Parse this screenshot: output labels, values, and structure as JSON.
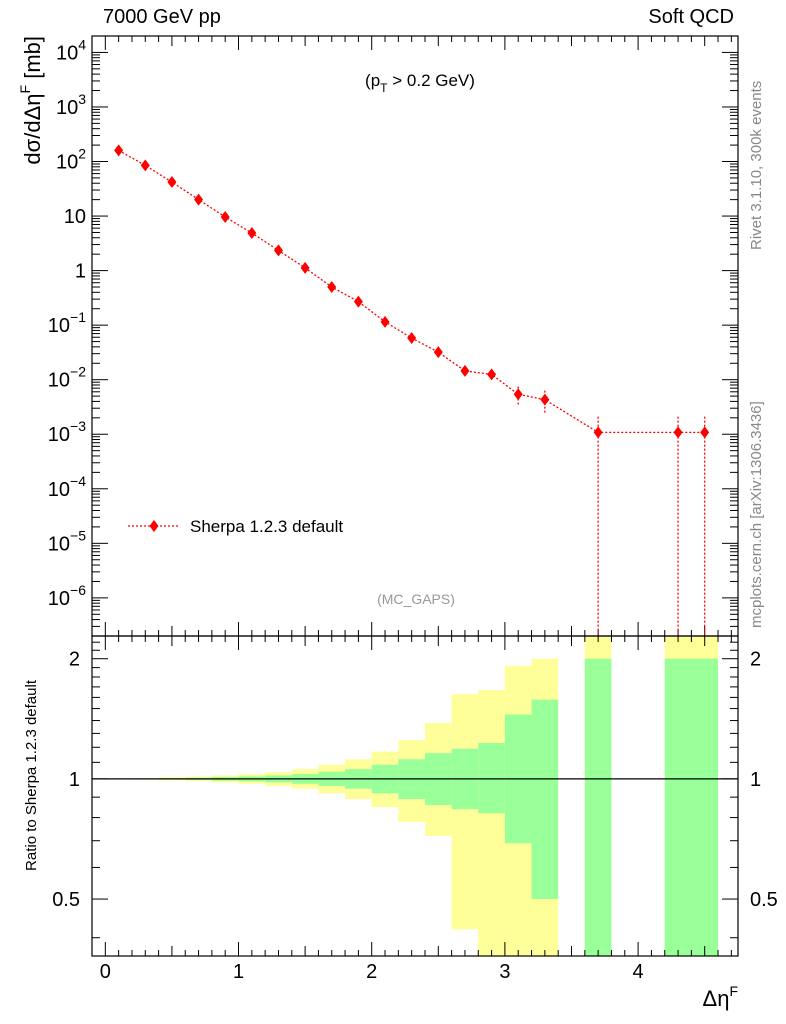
{
  "header": {
    "left": "7000 GeV pp",
    "right": "Soft QCD"
  },
  "side_labels": {
    "rivet": "Rivet 3.1.10,  300k events",
    "mcplots": "mcplots.cern.ch [arXiv:1306.3436]"
  },
  "chart_data": [
    {
      "type": "scatter",
      "panel": "main",
      "title": "",
      "annotation": {
        "text": "(p",
        "sub": "T",
        "rest": " > 0.2 GeV)"
      },
      "analysis_label": "(MC_GAPS)",
      "ylabel": "dσ/dΔη",
      "ylabel_sup": "F",
      "ylabel_unit": " [mb]",
      "yscale": "log",
      "xlim": [
        -0.1,
        4.75
      ],
      "ylim": [
        2e-07,
        20000
      ],
      "y_ticks": [
        {
          "v": 1e-06,
          "base": "10",
          "exp": "−6"
        },
        {
          "v": 1e-05,
          "base": "10",
          "exp": "−5"
        },
        {
          "v": 0.0001,
          "base": "10",
          "exp": "−4"
        },
        {
          "v": 0.001,
          "base": "10",
          "exp": "−3"
        },
        {
          "v": 0.01,
          "base": "10",
          "exp": "−2"
        },
        {
          "v": 0.1,
          "base": "10",
          "exp": "−1"
        },
        {
          "v": 1,
          "base": "1",
          "exp": ""
        },
        {
          "v": 10,
          "base": "10",
          "exp": ""
        },
        {
          "v": 100,
          "base": "10",
          "exp": "2"
        },
        {
          "v": 1000,
          "base": "10",
          "exp": "3"
        },
        {
          "v": 10000,
          "base": "10",
          "exp": "4"
        }
      ],
      "legend": {
        "position": "lower-left",
        "entry": "Sherpa 1.2.3 default"
      },
      "series": [
        {
          "name": "Sherpa 1.2.3 default",
          "color": "#ff0000",
          "points": [
            {
              "x": 0.1,
              "y": 160,
              "lo": 160,
              "hi": 160
            },
            {
              "x": 0.3,
              "y": 85,
              "lo": 85,
              "hi": 85
            },
            {
              "x": 0.5,
              "y": 42,
              "lo": 42,
              "hi": 42
            },
            {
              "x": 0.7,
              "y": 20,
              "lo": 20,
              "hi": 20
            },
            {
              "x": 0.9,
              "y": 9.6,
              "lo": 9.6,
              "hi": 9.6
            },
            {
              "x": 1.1,
              "y": 4.9,
              "lo": 4.9,
              "hi": 4.9
            },
            {
              "x": 1.3,
              "y": 2.35,
              "lo": 2.35,
              "hi": 2.35
            },
            {
              "x": 1.5,
              "y": 1.12,
              "lo": 1.12,
              "hi": 1.12
            },
            {
              "x": 1.7,
              "y": 0.5,
              "lo": 0.5,
              "hi": 0.5
            },
            {
              "x": 1.9,
              "y": 0.27,
              "lo": 0.27,
              "hi": 0.27
            },
            {
              "x": 2.1,
              "y": 0.115,
              "lo": 0.11,
              "hi": 0.12
            },
            {
              "x": 2.3,
              "y": 0.058,
              "lo": 0.055,
              "hi": 0.061
            },
            {
              "x": 2.5,
              "y": 0.032,
              "lo": 0.029,
              "hi": 0.035
            },
            {
              "x": 2.7,
              "y": 0.0145,
              "lo": 0.012,
              "hi": 0.017
            },
            {
              "x": 2.9,
              "y": 0.0125,
              "lo": 0.0098,
              "hi": 0.0152
            },
            {
              "x": 3.1,
              "y": 0.0054,
              "lo": 0.0033,
              "hi": 0.0075
            },
            {
              "x": 3.3,
              "y": 0.0043,
              "lo": 0.0024,
              "hi": 0.0063
            },
            {
              "x": 3.7,
              "y": 0.00108,
              "lo": null,
              "hi": 0.0021
            },
            {
              "x": 4.3,
              "y": 0.00108,
              "lo": null,
              "hi": 0.0021
            },
            {
              "x": 4.5,
              "y": 0.00108,
              "lo": null,
              "hi": 0.0021
            }
          ]
        }
      ]
    },
    {
      "type": "bar",
      "panel": "ratio",
      "ylabel": "Ratio to Sherpa 1.2.3 default",
      "xlabel": "Δη",
      "xlabel_sup": "F",
      "xlim": [
        -0.1,
        4.75
      ],
      "ylim": [
        0.36,
        2.28
      ],
      "yscale": "log",
      "y_ticks": [
        0.5,
        1,
        2
      ],
      "x_ticks": [
        0,
        1,
        2,
        3,
        4
      ],
      "reference_line": 1,
      "colors": {
        "inner": "#99ff99",
        "outer": "#ffff99"
      },
      "bands": [
        {
          "x0": 0.0,
          "x1": 0.2,
          "inner": [
            0.999,
            1.001
          ],
          "outer": [
            0.998,
            1.002
          ]
        },
        {
          "x0": 0.2,
          "x1": 0.4,
          "inner": [
            0.998,
            1.002
          ],
          "outer": [
            0.996,
            1.004
          ]
        },
        {
          "x0": 0.4,
          "x1": 0.6,
          "inner": [
            0.996,
            1.004
          ],
          "outer": [
            0.992,
            1.008
          ]
        },
        {
          "x0": 0.6,
          "x1": 0.8,
          "inner": [
            0.994,
            1.006
          ],
          "outer": [
            0.988,
            1.012
          ]
        },
        {
          "x0": 0.8,
          "x1": 1.0,
          "inner": [
            0.99,
            1.01
          ],
          "outer": [
            0.98,
            1.02
          ]
        },
        {
          "x0": 1.0,
          "x1": 1.2,
          "inner": [
            0.986,
            1.014
          ],
          "outer": [
            0.972,
            1.028
          ]
        },
        {
          "x0": 1.2,
          "x1": 1.4,
          "inner": [
            0.98,
            1.02
          ],
          "outer": [
            0.96,
            1.04
          ]
        },
        {
          "x0": 1.4,
          "x1": 1.6,
          "inner": [
            0.972,
            1.028
          ],
          "outer": [
            0.945,
            1.058
          ]
        },
        {
          "x0": 1.6,
          "x1": 1.8,
          "inner": [
            0.96,
            1.042
          ],
          "outer": [
            0.92,
            1.085
          ]
        },
        {
          "x0": 1.8,
          "x1": 2.0,
          "inner": [
            0.945,
            1.058
          ],
          "outer": [
            0.89,
            1.12
          ]
        },
        {
          "x0": 2.0,
          "x1": 2.2,
          "inner": [
            0.92,
            1.085
          ],
          "outer": [
            0.85,
            1.17
          ]
        },
        {
          "x0": 2.2,
          "x1": 2.4,
          "inner": [
            0.89,
            1.12
          ],
          "outer": [
            0.78,
            1.25
          ]
        },
        {
          "x0": 2.4,
          "x1": 2.6,
          "inner": [
            0.86,
            1.16
          ],
          "outer": [
            0.72,
            1.38
          ]
        },
        {
          "x0": 2.6,
          "x1": 2.8,
          "inner": [
            0.84,
            1.19
          ],
          "outer": [
            0.42,
            1.63
          ]
        },
        {
          "x0": 2.8,
          "x1": 3.0,
          "inner": [
            0.82,
            1.23
          ],
          "outer": [
            0.36,
            1.67
          ]
        },
        {
          "x0": 3.0,
          "x1": 3.2,
          "inner": [
            0.69,
            1.45
          ],
          "outer": [
            0.36,
            1.92
          ]
        },
        {
          "x0": 3.2,
          "x1": 3.4,
          "inner": [
            0.5,
            1.58
          ],
          "outer": [
            0.36,
            2.0
          ]
        },
        {
          "x0": 3.6,
          "x1": 3.8,
          "inner": [
            0.36,
            2.0
          ],
          "outer": [
            0.36,
            2.28
          ]
        },
        {
          "x0": 4.2,
          "x1": 4.6,
          "inner": [
            0.36,
            2.0
          ],
          "outer": [
            0.36,
            2.28
          ]
        }
      ]
    }
  ]
}
